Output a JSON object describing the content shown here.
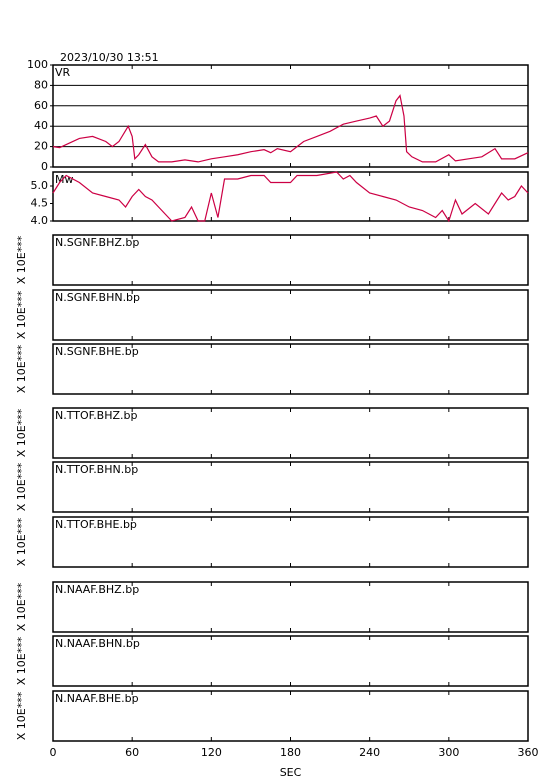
{
  "timestamp": "2023/10/30 13:51",
  "chart_data": [
    {
      "type": "line",
      "label": "VR",
      "color": "#cc0044",
      "grid": true,
      "ylim": [
        0,
        100
      ],
      "yticks": [
        0,
        20,
        40,
        60,
        80,
        100
      ],
      "x": [
        0,
        5,
        10,
        20,
        30,
        40,
        45,
        50,
        57,
        60,
        62,
        65,
        70,
        75,
        80,
        90,
        100,
        110,
        120,
        130,
        140,
        150,
        160,
        165,
        170,
        180,
        185,
        190,
        200,
        210,
        220,
        230,
        240,
        245,
        250,
        255,
        260,
        263,
        266,
        268,
        272,
        280,
        290,
        300,
        305,
        315,
        325,
        335,
        340,
        350,
        360
      ],
      "values": [
        20,
        19,
        22,
        28,
        30,
        25,
        20,
        25,
        40,
        30,
        8,
        12,
        22,
        10,
        5,
        5,
        7,
        5,
        8,
        10,
        12,
        15,
        17,
        14,
        18,
        15,
        20,
        25,
        30,
        35,
        42,
        45,
        48,
        50,
        40,
        45,
        65,
        70,
        50,
        15,
        10,
        5,
        5,
        12,
        6,
        8,
        10,
        18,
        8,
        8,
        14
      ]
    },
    {
      "type": "line",
      "label": "Mw",
      "color": "#cc0044",
      "grid": false,
      "ylim": [
        4,
        5.4
      ],
      "yticks": [
        {
          "value": 4,
          "label": "4.0"
        },
        4.5,
        {
          "value": 5,
          "label": "5.0"
        }
      ],
      "x": [
        0,
        5,
        10,
        20,
        30,
        40,
        50,
        55,
        60,
        65,
        70,
        75,
        80,
        90,
        100,
        105,
        110,
        115,
        120,
        125,
        130,
        140,
        150,
        160,
        165,
        180,
        185,
        200,
        215,
        220,
        225,
        230,
        240,
        250,
        260,
        270,
        280,
        290,
        295,
        300,
        305,
        310,
        320,
        330,
        340,
        345,
        350,
        355,
        360
      ],
      "values": [
        4.8,
        5.1,
        5.3,
        5.1,
        4.8,
        4.7,
        4.6,
        4.4,
        4.7,
        4.9,
        4.7,
        4.6,
        4.4,
        4.0,
        4.1,
        4.4,
        4.0,
        4.0,
        4.8,
        4.1,
        5.2,
        5.2,
        5.3,
        5.3,
        5.1,
        5.1,
        5.3,
        5.3,
        5.4,
        5.2,
        5.3,
        5.1,
        4.8,
        4.7,
        4.6,
        4.4,
        4.3,
        4.1,
        4.3,
        4.0,
        4.6,
        4.2,
        4.5,
        4.2,
        4.8,
        4.6,
        4.7,
        5.0,
        4.8
      ]
    },
    {
      "type": "waveform",
      "label": "N.SGNF.BHZ.bp",
      "ylabel": "X 10E***"
    },
    {
      "type": "waveform",
      "label": "N.SGNF.BHN.bp",
      "ylabel": "X 10E***"
    },
    {
      "type": "waveform",
      "label": "N.SGNF.BHE.bp",
      "ylabel": "X 10E***"
    },
    {
      "type": "waveform",
      "label": "N.TTOF.BHZ.bp",
      "ylabel": "X 10E***"
    },
    {
      "type": "waveform",
      "label": "N.TTOF.BHN.bp",
      "ylabel": "X 10E***"
    },
    {
      "type": "waveform",
      "label": "N.TTOF.BHE.bp",
      "ylabel": "X 10E***"
    },
    {
      "type": "waveform",
      "label": "N.NAAF.BHZ.bp",
      "ylabel": "X 10E***"
    },
    {
      "type": "waveform",
      "label": "N.NAAF.BHN.bp",
      "ylabel": "X 10E***"
    },
    {
      "type": "waveform",
      "label": "N.NAAF.BHE.bp",
      "ylabel": "X 10E***",
      "xlabel": "SEC",
      "xlim": [
        0,
        360
      ],
      "xticks": [
        0,
        60,
        120,
        180,
        240,
        300,
        360
      ]
    }
  ]
}
